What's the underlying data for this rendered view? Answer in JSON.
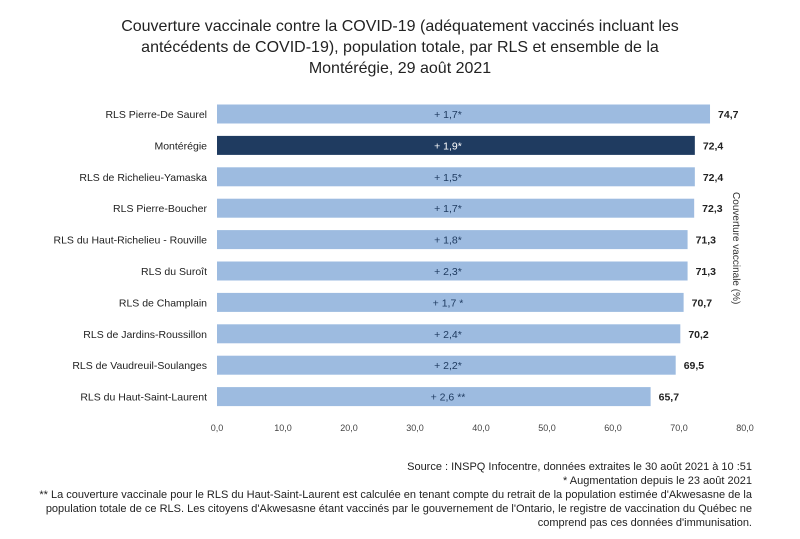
{
  "chart_data": {
    "type": "bar",
    "orientation": "horizontal",
    "title_lines": [
      "Couverture vaccinale contre la COVID-19 (adéquatement vaccinés incluant les",
      "antécédents de COVID-19), population totale, par RLS et ensemble de la",
      "Montérégie, 29 août 2021"
    ],
    "categories": [
      "RLS Pierre-De Saurel",
      "Montérégie",
      "RLS de Richelieu-Yamaska",
      "RLS Pierre-Boucher",
      "RLS du Haut-Richelieu - Rouville",
      "RLS du Suroît",
      "RLS de Champlain",
      "RLS de Jardins-Roussillon",
      "RLS de Vaudreuil-Soulanges",
      "RLS du Haut-Saint-Laurent"
    ],
    "values": [
      74.7,
      72.4,
      72.4,
      72.3,
      71.3,
      71.3,
      70.7,
      70.2,
      69.5,
      65.7
    ],
    "value_labels": [
      "74,7",
      "72,4",
      "72,4",
      "72,3",
      "71,3",
      "71,3",
      "70,7",
      "70,2",
      "69,5",
      "65,7"
    ],
    "bar_annotations": [
      "+ 1,7*",
      "+ 1,9*",
      "+ 1,5*",
      "+ 1,7*",
      "+ 1,8*",
      "+ 2,3*",
      "+ 1,7 *",
      "+ 2,4*",
      "+ 2,2*",
      "+ 2,6 **"
    ],
    "highlight_index": 1,
    "xlim": [
      0,
      80
    ],
    "xticks": [
      0,
      10,
      20,
      30,
      40,
      50,
      60,
      70,
      80
    ],
    "xtick_labels": [
      "0,0",
      "10,0",
      "20,0",
      "30,0",
      "40,0",
      "50,0",
      "60,0",
      "70,0",
      "80,0"
    ],
    "ylabel_right": "Couverture vaccinale (%)",
    "grid": false,
    "colors": {
      "bar": "#9dbbe0",
      "highlight": "#1f3b60",
      "label_dark": "#ffffff",
      "label_light": "#1f3b60"
    }
  },
  "notes": {
    "source": "Source : INSPQ Infocentre, données extraites le 30 août 2021 à 10 :51",
    "asterisk": "* Augmentation depuis le 23 août 2021",
    "footnote": "** La couverture vaccinale pour le RLS du Haut-Saint-Laurent est calculée en tenant compte du retrait de la population estimée d'Akwesasne de la population totale de ce RLS. Les citoyens d'Akwesasne étant vaccinés par le gouvernement de l'Ontario, le registre de vaccination du Québec ne comprend pas ces données d'immunisation."
  }
}
